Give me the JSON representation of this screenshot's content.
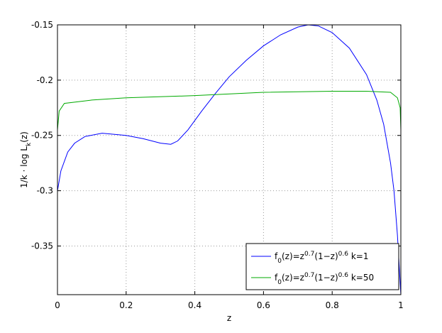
{
  "chart_data": {
    "type": "line",
    "xlabel": "z",
    "ylabel": "1/k · log L_k(z)",
    "xlim": [
      0,
      1
    ],
    "ylim": [
      -0.394,
      -0.15
    ],
    "xticks": [
      0,
      0.2,
      0.4,
      0.6,
      0.8,
      1
    ],
    "yticks": [
      -0.35,
      -0.3,
      -0.25,
      -0.2,
      -0.15
    ],
    "grid": true,
    "legend": "lower right",
    "series": [
      {
        "name": "f_0(z)=z^{0.7}(1−z)^{0.6} k=1",
        "color": "#0000ff",
        "x": [
          0,
          0.01,
          0.03,
          0.05,
          0.08,
          0.13,
          0.2,
          0.25,
          0.3,
          0.33,
          0.35,
          0.38,
          0.42,
          0.46,
          0.5,
          0.55,
          0.6,
          0.65,
          0.7,
          0.73,
          0.76,
          0.8,
          0.85,
          0.9,
          0.93,
          0.95,
          0.97,
          0.98,
          0.99,
          1
        ],
        "values": [
          -0.3,
          -0.282,
          -0.265,
          -0.257,
          -0.251,
          -0.248,
          -0.25,
          -0.253,
          -0.257,
          -0.258,
          -0.255,
          -0.245,
          -0.228,
          -0.212,
          -0.197,
          -0.182,
          -0.169,
          -0.159,
          -0.152,
          -0.15,
          -0.151,
          -0.157,
          -0.171,
          -0.195,
          -0.218,
          -0.24,
          -0.275,
          -0.3,
          -0.34,
          -0.394
        ]
      },
      {
        "name": "f_0(z)=z^{0.7}(1−z)^{0.6} k=50",
        "color": "#00aa00",
        "x": [
          0,
          0.005,
          0.02,
          0.1,
          0.2,
          0.4,
          0.6,
          0.8,
          0.9,
          0.97,
          0.99,
          0.998,
          1
        ],
        "values": [
          -0.245,
          -0.228,
          -0.221,
          -0.218,
          -0.216,
          -0.214,
          -0.211,
          -0.21,
          -0.21,
          -0.211,
          -0.216,
          -0.225,
          -0.245
        ]
      }
    ]
  }
}
